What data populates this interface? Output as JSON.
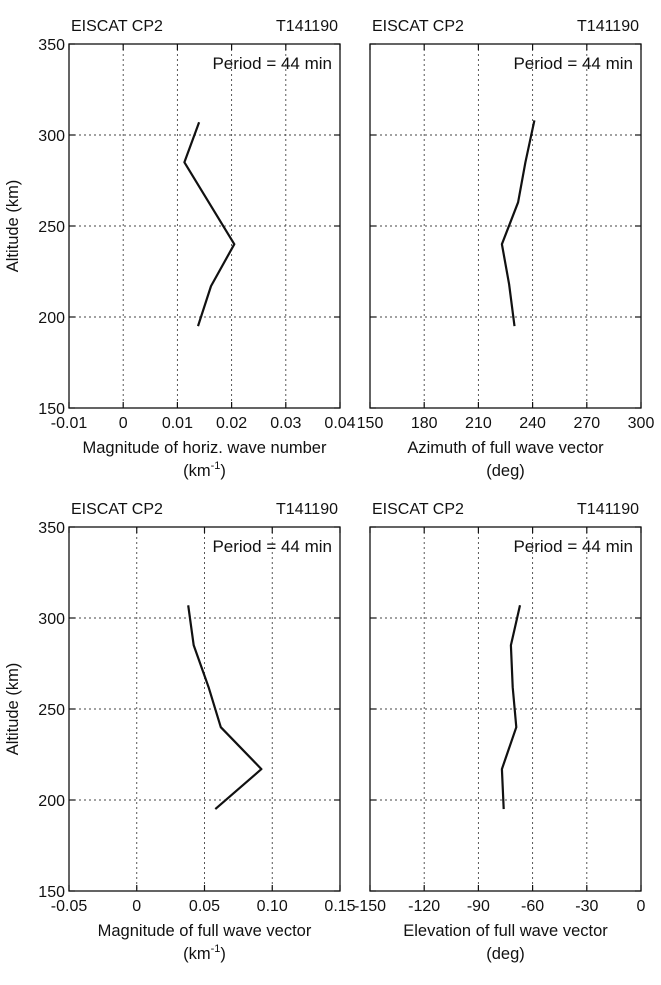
{
  "chart_data": [
    {
      "type": "line",
      "header_left": "EISCAT CP2",
      "header_right": "T141190",
      "annotation": "Period = 44 min",
      "ylabel": "Altitude (km)",
      "xlabel": "Magnitude of horiz. wave number",
      "xunit": "(km-1)",
      "xlim": [
        -0.01,
        0.04
      ],
      "ylim": [
        150,
        350
      ],
      "xticks": [
        "-0.01",
        "0",
        "0.01",
        "0.02",
        "0.03",
        "0.04"
      ],
      "xtick_values": [
        -0.01,
        0,
        0.01,
        0.02,
        0.03,
        0.04
      ],
      "yticks": [
        "150",
        "200",
        "250",
        "300",
        "350"
      ],
      "ytick_values": [
        150,
        200,
        250,
        300,
        350
      ],
      "grid": true,
      "x": [
        0.0138,
        0.0162,
        0.0205,
        0.0113,
        0.014
      ],
      "y": [
        195,
        217,
        240,
        285,
        307
      ]
    },
    {
      "type": "line",
      "header_left": "EISCAT CP2",
      "header_right": "T141190",
      "annotation": "Period = 44 min",
      "ylabel": "",
      "xlabel": "Azimuth of full wave vector",
      "xunit": "(deg)",
      "xlim": [
        150,
        300
      ],
      "ylim": [
        150,
        350
      ],
      "xticks": [
        "150",
        "180",
        "210",
        "240",
        "270",
        "300"
      ],
      "xtick_values": [
        150,
        180,
        210,
        240,
        270,
        300
      ],
      "yticks": [],
      "ytick_values": [
        150,
        200,
        250,
        300,
        350
      ],
      "grid": true,
      "x": [
        230,
        227,
        223,
        232,
        236,
        241
      ],
      "y": [
        195,
        218,
        240,
        263,
        285,
        308
      ]
    },
    {
      "type": "line",
      "header_left": "EISCAT CP2",
      "header_right": "T141190",
      "annotation": "Period = 44 min",
      "ylabel": "Altitude (km)",
      "xlabel": "Magnitude of full wave vector",
      "xunit": "(km-1)",
      "xlim": [
        -0.05,
        0.15
      ],
      "ylim": [
        150,
        350
      ],
      "xticks": [
        "-0.05",
        "0",
        "0.05",
        "0.10",
        "0.15"
      ],
      "xtick_values": [
        -0.05,
        0,
        0.05,
        0.1,
        0.15
      ],
      "yticks": [
        "150",
        "200",
        "250",
        "300",
        "350"
      ],
      "ytick_values": [
        150,
        200,
        250,
        300,
        350
      ],
      "grid": true,
      "x": [
        0.058,
        0.092,
        0.062,
        0.053,
        0.042,
        0.038
      ],
      "y": [
        195,
        217,
        240,
        262,
        285,
        307
      ]
    },
    {
      "type": "line",
      "header_left": "EISCAT CP2",
      "header_right": "T141190",
      "annotation": "Period = 44 min",
      "ylabel": "",
      "xlabel": "Elevation of full wave vector",
      "xunit": "(deg)",
      "xlim": [
        -150,
        0
      ],
      "ylim": [
        150,
        350
      ],
      "xticks": [
        "-150",
        "-120",
        "-90",
        "-60",
        "-30",
        "0"
      ],
      "xtick_values": [
        -150,
        -120,
        -90,
        -60,
        -30,
        0
      ],
      "yticks": [],
      "ytick_values": [
        150,
        200,
        250,
        300,
        350
      ],
      "grid": true,
      "x": [
        -76,
        -77,
        -69,
        -71,
        -72,
        -67
      ],
      "y": [
        195,
        217,
        240,
        262,
        285,
        307
      ]
    }
  ]
}
